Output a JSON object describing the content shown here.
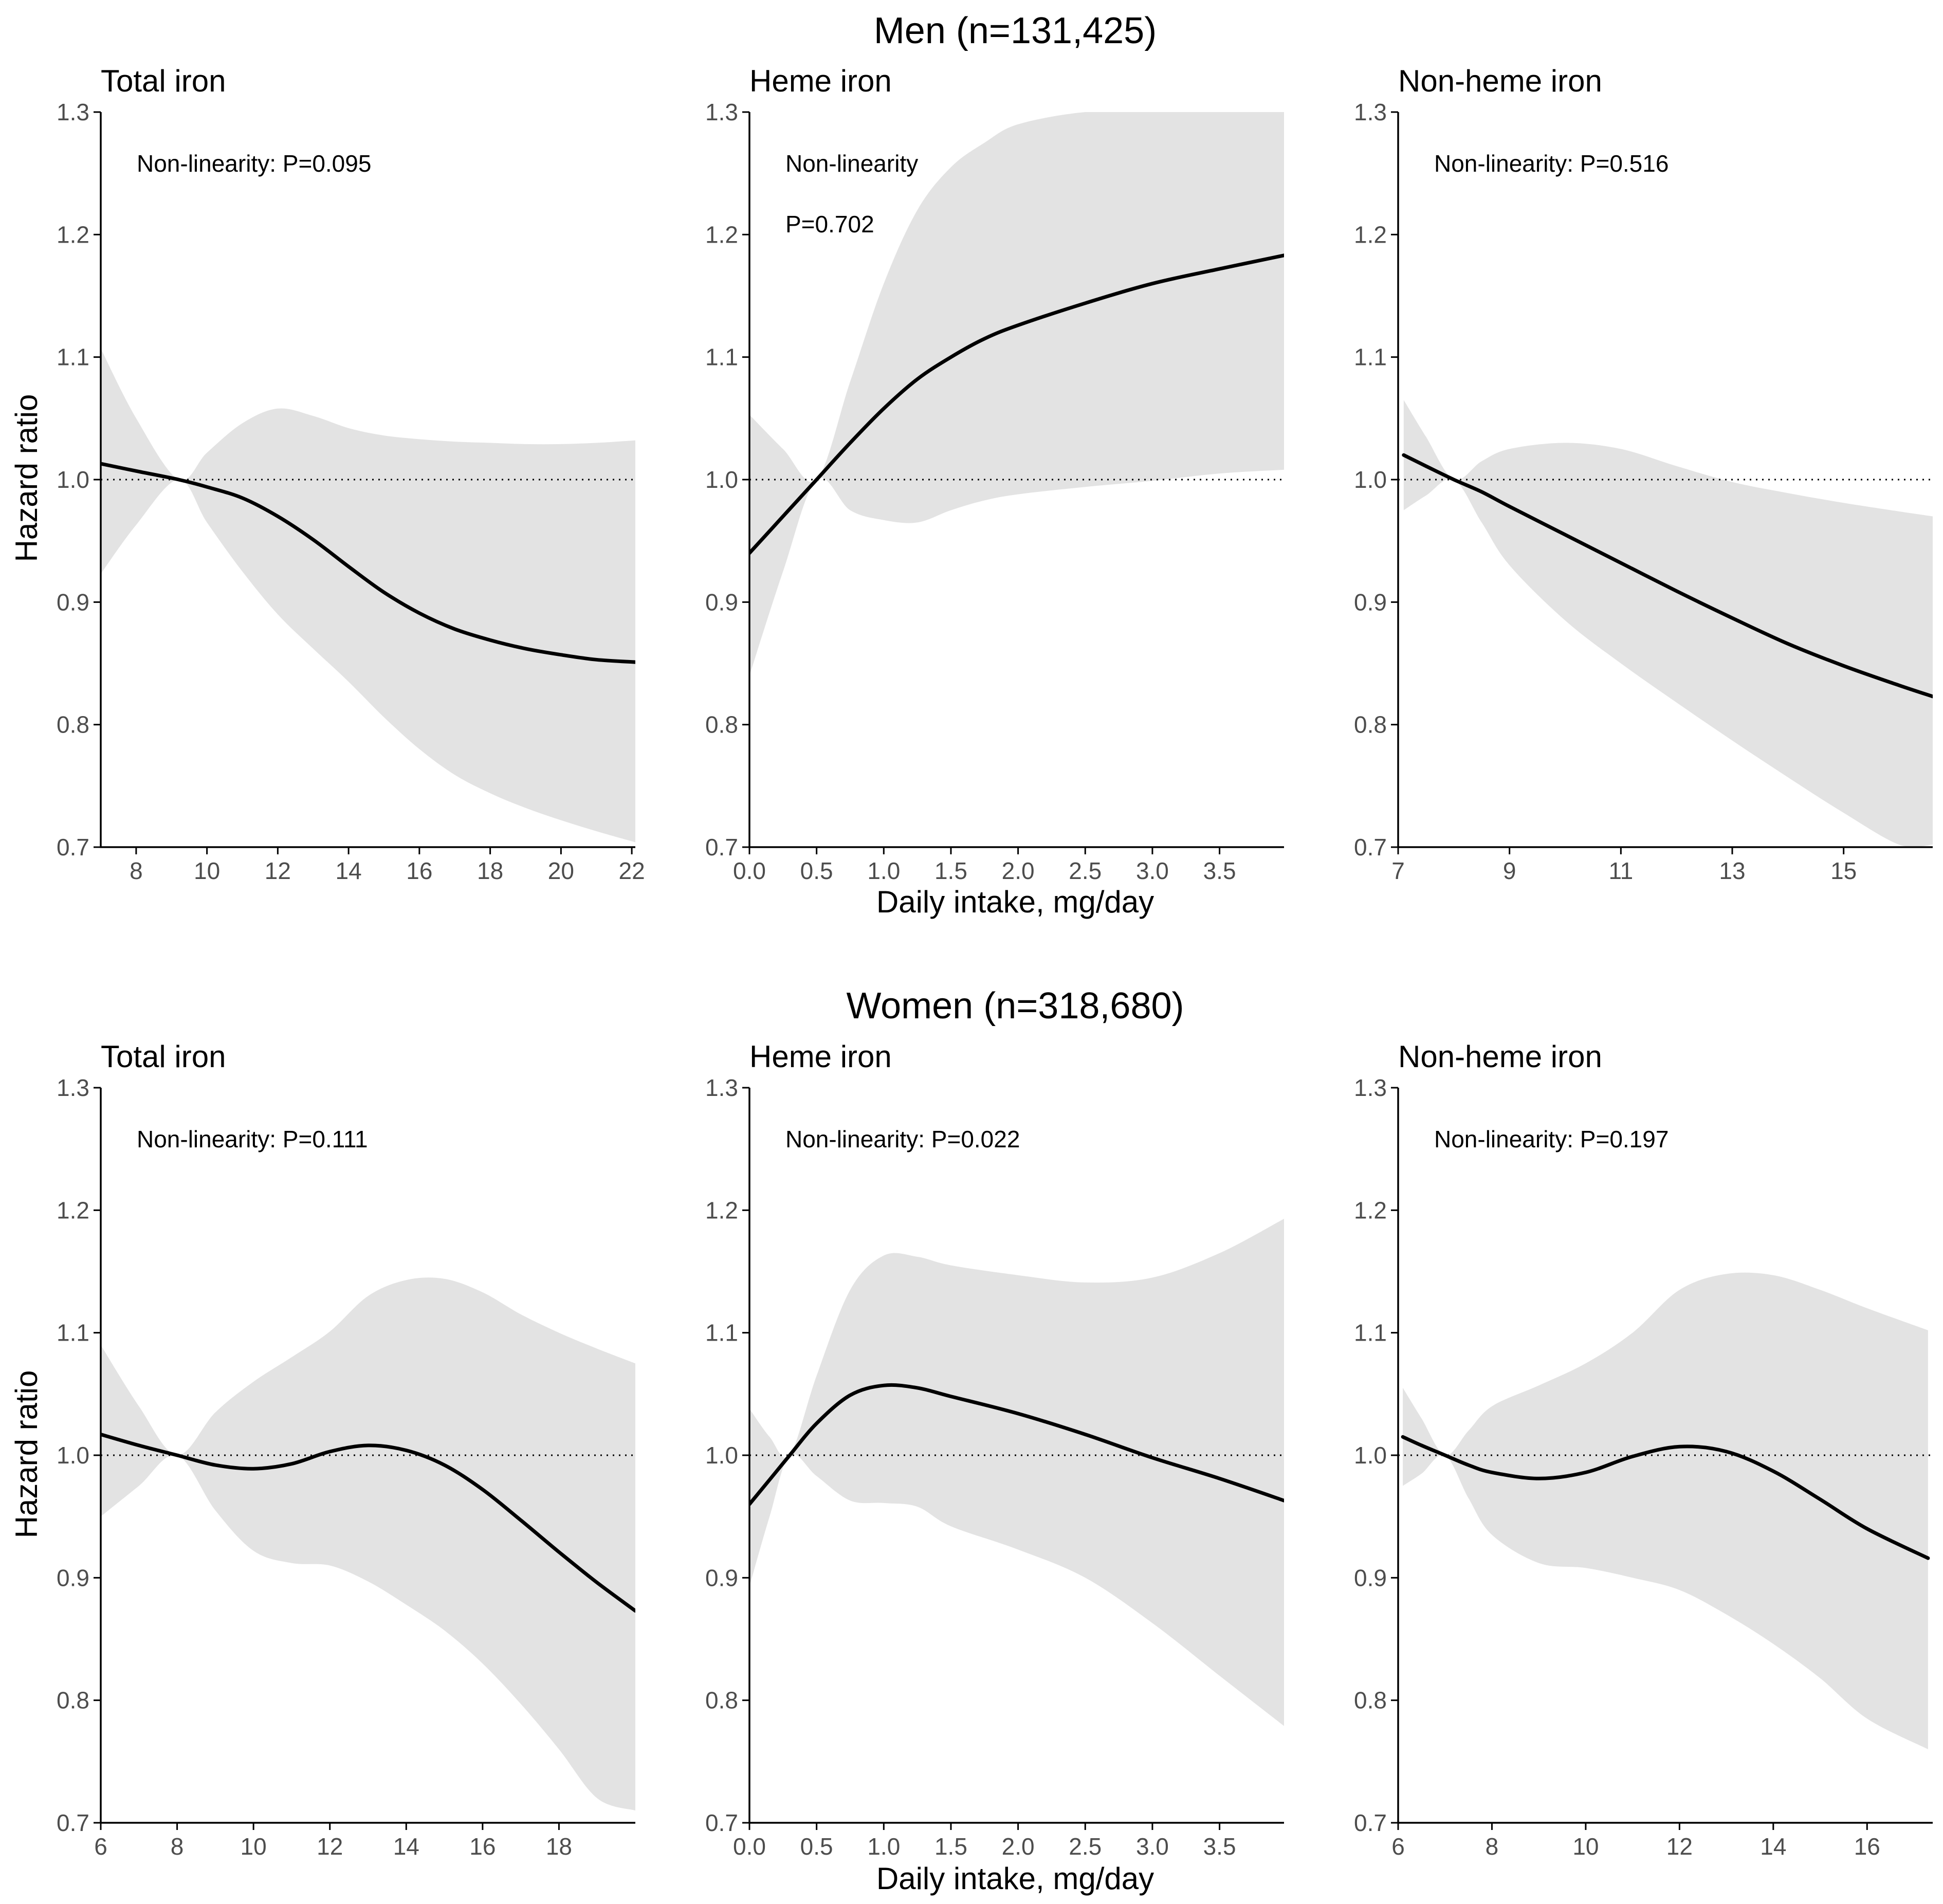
{
  "colors": {
    "ci_band": "#e3e3e3",
    "curve": "#000000",
    "axis": "#000000",
    "tick_text": "#4d4d4d",
    "reference_line": "#000000"
  },
  "rows": [
    {
      "title": "Men (n=131,425)"
    },
    {
      "title": "Women (n=318,680)"
    }
  ],
  "y_axis_label": "Hazard ratio",
  "x_axis_label": "Daily intake, mg/day",
  "chart_data": [
    {
      "type": "line",
      "row": 0,
      "col": 0,
      "title": "Total iron",
      "annotation": [
        "Non-linearity: P=0.095"
      ],
      "xlim": [
        7,
        22.1
      ],
      "ylim": [
        0.7,
        1.3
      ],
      "xticks": [
        8,
        10,
        12,
        14,
        16,
        18,
        20,
        22
      ],
      "xtick_labels": [
        "8",
        "10",
        "12",
        "14",
        "16",
        "18",
        "20",
        "22"
      ],
      "yticks": [
        0.7,
        0.8,
        0.9,
        1.0,
        1.1,
        1.2,
        1.3
      ],
      "ytick_labels": [
        "0.7",
        "0.8",
        "0.9",
        "1.0",
        "1.1",
        "1.2",
        "1.3"
      ],
      "reference_y": 1.0,
      "ylabel": "Hazard ratio",
      "xlabel": "",
      "x": [
        7.0,
        8.0,
        9.2,
        10.0,
        11.0,
        12.0,
        13.0,
        14.0,
        15.0,
        16.0,
        17.0,
        18.0,
        19.0,
        20.0,
        21.0,
        22.1
      ],
      "hr": [
        1.013,
        1.007,
        1.0,
        0.994,
        0.985,
        0.97,
        0.951,
        0.929,
        0.908,
        0.891,
        0.878,
        0.869,
        0.862,
        0.857,
        0.853,
        0.851
      ],
      "lower": [
        0.923,
        0.963,
        1.0,
        0.965,
        0.925,
        0.89,
        0.862,
        0.835,
        0.806,
        0.78,
        0.759,
        0.744,
        0.732,
        0.722,
        0.713,
        0.704
      ],
      "upper": [
        1.107,
        1.05,
        1.0,
        1.022,
        1.046,
        1.058,
        1.052,
        1.042,
        1.036,
        1.033,
        1.031,
        1.03,
        1.029,
        1.029,
        1.03,
        1.032
      ]
    },
    {
      "type": "line",
      "row": 0,
      "col": 1,
      "title": "Heme iron",
      "annotation": [
        "Non-linearity",
        "P=0.702"
      ],
      "xlim": [
        0,
        3.98
      ],
      "ylim": [
        0.7,
        1.3
      ],
      "xticks": [
        0,
        0.5,
        1.0,
        1.5,
        2.0,
        2.5,
        3.0,
        3.5
      ],
      "xtick_labels": [
        "0.0",
        "0.5",
        "1.0",
        "1.5",
        "2.0",
        "2.5",
        "3.0",
        "3.5"
      ],
      "yticks": [
        0.7,
        0.8,
        0.9,
        1.0,
        1.1,
        1.2,
        1.3
      ],
      "ytick_labels": [
        "0.7",
        "0.8",
        "0.9",
        "1.0",
        "1.1",
        "1.2",
        "1.3"
      ],
      "reference_y": 1.0,
      "ylabel": "",
      "xlabel": "Daily intake, mg/day",
      "x": [
        0.0,
        0.25,
        0.5,
        0.75,
        1.0,
        1.25,
        1.5,
        1.75,
        2.0,
        2.5,
        3.0,
        3.5,
        3.98
      ],
      "hr": [
        0.94,
        0.97,
        1.0,
        1.03,
        1.058,
        1.082,
        1.1,
        1.115,
        1.126,
        1.144,
        1.16,
        1.172,
        1.183
      ],
      "lower": [
        0.84,
        0.925,
        1.0,
        0.975,
        0.967,
        0.965,
        0.975,
        0.983,
        0.988,
        0.994,
        0.999,
        1.005,
        1.008
      ],
      "upper": [
        1.053,
        1.025,
        1.0,
        1.08,
        1.16,
        1.22,
        1.255,
        1.275,
        1.29,
        1.3,
        1.3,
        1.3,
        1.3
      ]
    },
    {
      "type": "line",
      "row": 0,
      "col": 2,
      "title": "Non-heme iron",
      "annotation": [
        "Non-linearity: P=0.516"
      ],
      "xlim": [
        7,
        16.6
      ],
      "ylim": [
        0.7,
        1.3
      ],
      "xticks": [
        7,
        9,
        11,
        13,
        15
      ],
      "xtick_labels": [
        "7",
        "9",
        "11",
        "13",
        "15"
      ],
      "yticks": [
        0.7,
        0.8,
        0.9,
        1.0,
        1.1,
        1.2,
        1.3
      ],
      "ytick_labels": [
        "0.7",
        "0.8",
        "0.9",
        "1.0",
        "1.1",
        "1.2",
        "1.3"
      ],
      "reference_y": 1.0,
      "ylabel": "",
      "xlabel": "",
      "x": [
        7.1,
        7.5,
        8.0,
        8.5,
        9.0,
        10.0,
        11.0,
        12.0,
        13.0,
        14.0,
        15.0,
        16.0,
        16.6
      ],
      "hr": [
        1.02,
        1.011,
        1.0,
        0.99,
        0.978,
        0.955,
        0.932,
        0.909,
        0.887,
        0.866,
        0.848,
        0.832,
        0.823
      ],
      "lower": [
        0.975,
        0.987,
        1.0,
        0.965,
        0.93,
        0.885,
        0.85,
        0.818,
        0.787,
        0.757,
        0.728,
        0.702,
        0.702
      ],
      "upper": [
        1.065,
        1.035,
        1.0,
        1.015,
        1.025,
        1.03,
        1.025,
        1.011,
        0.998,
        0.989,
        0.981,
        0.974,
        0.97
      ]
    },
    {
      "type": "line",
      "row": 1,
      "col": 0,
      "title": "Total iron",
      "annotation": [
        "Non-linearity: P=0.111"
      ],
      "xlim": [
        6,
        20
      ],
      "ylim": [
        0.7,
        1.3
      ],
      "xticks": [
        6,
        8,
        10,
        12,
        14,
        16,
        18
      ],
      "xtick_labels": [
        "6",
        "8",
        "10",
        "12",
        "14",
        "16",
        "18"
      ],
      "yticks": [
        0.7,
        0.8,
        0.9,
        1.0,
        1.1,
        1.2,
        1.3
      ],
      "ytick_labels": [
        "0.7",
        "0.8",
        "0.9",
        "1.0",
        "1.1",
        "1.2",
        "1.3"
      ],
      "reference_y": 1.0,
      "ylabel": "Hazard ratio",
      "xlabel": "",
      "x": [
        6.0,
        7.0,
        8.0,
        9.0,
        10.0,
        11.0,
        12.0,
        13.0,
        14.0,
        15.0,
        16.0,
        17.0,
        18.0,
        19.0,
        20.0
      ],
      "hr": [
        1.017,
        1.008,
        1.0,
        0.992,
        0.989,
        0.993,
        1.003,
        1.008,
        1.004,
        0.992,
        0.972,
        0.947,
        0.921,
        0.896,
        0.873
      ],
      "lower": [
        0.95,
        0.975,
        1.0,
        0.955,
        0.922,
        0.912,
        0.91,
        0.897,
        0.878,
        0.857,
        0.83,
        0.797,
        0.76,
        0.72,
        0.71
      ],
      "upper": [
        1.09,
        1.04,
        1.0,
        1.035,
        1.06,
        1.08,
        1.101,
        1.13,
        1.143,
        1.144,
        1.133,
        1.115,
        1.1,
        1.087,
        1.075
      ]
    },
    {
      "type": "line",
      "row": 1,
      "col": 1,
      "title": "Heme iron",
      "annotation": [
        "Non-linearity: P=0.022"
      ],
      "xlim": [
        0,
        3.98
      ],
      "ylim": [
        0.7,
        1.3
      ],
      "xticks": [
        0,
        0.5,
        1.0,
        1.5,
        2.0,
        2.5,
        3.0,
        3.5
      ],
      "xtick_labels": [
        "0.0",
        "0.5",
        "1.0",
        "1.5",
        "2.0",
        "2.5",
        "3.0",
        "3.5"
      ],
      "yticks": [
        0.7,
        0.8,
        0.9,
        1.0,
        1.1,
        1.2,
        1.3
      ],
      "ytick_labels": [
        "0.7",
        "0.8",
        "0.9",
        "1.0",
        "1.1",
        "1.2",
        "1.3"
      ],
      "reference_y": 1.0,
      "ylabel": "",
      "xlabel": "Daily intake, mg/day",
      "x": [
        0.0,
        0.15,
        0.3,
        0.5,
        0.75,
        1.0,
        1.25,
        1.5,
        2.0,
        2.5,
        3.0,
        3.5,
        3.98
      ],
      "hr": [
        0.96,
        0.98,
        1.0,
        1.026,
        1.049,
        1.057,
        1.055,
        1.048,
        1.034,
        1.017,
        0.998,
        0.981,
        0.963
      ],
      "lower": [
        0.893,
        0.95,
        1.0,
        0.983,
        0.963,
        0.961,
        0.958,
        0.942,
        0.923,
        0.9,
        0.863,
        0.82,
        0.779
      ],
      "upper": [
        1.038,
        1.015,
        1.0,
        1.065,
        1.135,
        1.163,
        1.162,
        1.155,
        1.147,
        1.141,
        1.145,
        1.165,
        1.193
      ]
    },
    {
      "type": "line",
      "row": 1,
      "col": 2,
      "title": "Non-heme iron",
      "annotation": [
        "Non-linearity: P=0.197"
      ],
      "xlim": [
        6,
        17.4
      ],
      "ylim": [
        0.7,
        1.3
      ],
      "xticks": [
        6,
        8,
        10,
        12,
        14,
        16
      ],
      "xtick_labels": [
        "6",
        "8",
        "10",
        "12",
        "14",
        "16"
      ],
      "yticks": [
        0.7,
        0.8,
        0.9,
        1.0,
        1.1,
        1.2,
        1.3
      ],
      "ytick_labels": [
        "0.7",
        "0.8",
        "0.9",
        "1.0",
        "1.1",
        "1.2",
        "1.3"
      ],
      "reference_y": 1.0,
      "ylabel": "",
      "xlabel": "",
      "x": [
        6.1,
        6.5,
        7.0,
        7.5,
        8.0,
        9.0,
        10.0,
        11.0,
        12.0,
        13.0,
        14.0,
        15.0,
        16.0,
        17.3
      ],
      "hr": [
        1.015,
        1.008,
        1.0,
        0.992,
        0.986,
        0.981,
        0.986,
        0.999,
        1.007,
        1.003,
        0.987,
        0.964,
        0.94,
        0.916
      ],
      "lower": [
        0.975,
        0.985,
        1.0,
        0.965,
        0.935,
        0.912,
        0.908,
        0.9,
        0.89,
        0.87,
        0.846,
        0.818,
        0.785,
        0.76
      ],
      "upper": [
        1.055,
        1.03,
        1.0,
        1.02,
        1.04,
        1.057,
        1.075,
        1.1,
        1.135,
        1.148,
        1.147,
        1.135,
        1.12,
        1.102
      ]
    }
  ]
}
